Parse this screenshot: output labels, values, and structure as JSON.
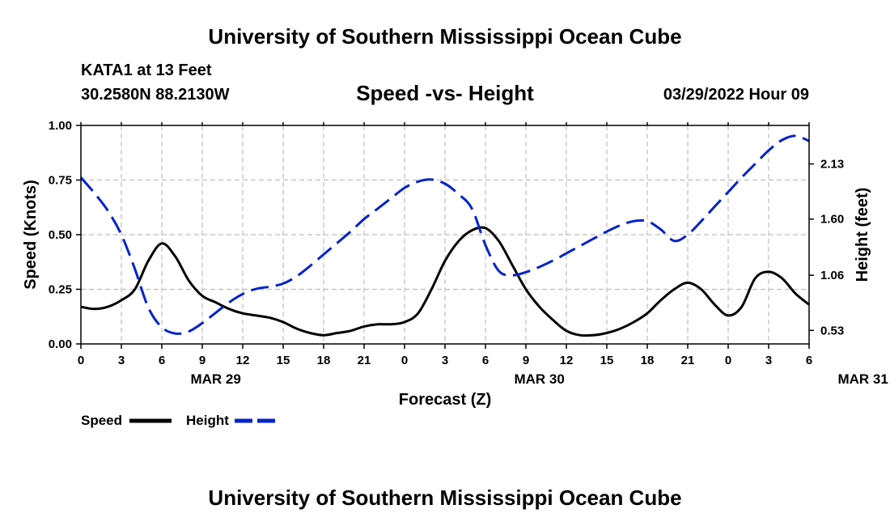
{
  "header": {
    "title": "University of Southern Mississippi Ocean Cube",
    "station": "KATA1 at 13 Feet",
    "coords": "30.2580N  88.2130W",
    "subtitle": "Speed -vs- Height",
    "datetime": "03/29/2022 Hour 09"
  },
  "footer": {
    "title": "University of Southern Mississippi Ocean Cube"
  },
  "chart_data": {
    "type": "line",
    "xlabel": "Forecast (Z)",
    "x_ticks": [
      "0",
      "3",
      "6",
      "9",
      "12",
      "15",
      "18",
      "21",
      "0",
      "3",
      "6",
      "9",
      "12",
      "15",
      "18",
      "21",
      "0",
      "3",
      "6"
    ],
    "date_labels": [
      {
        "label": "MAR 29",
        "hour": 10
      },
      {
        "label": "MAR 30",
        "hour": 34
      },
      {
        "label": "MAR 31",
        "hour": 58
      }
    ],
    "xlim": [
      0,
      54
    ],
    "ylabel_left": "Speed (Knots)",
    "ylim_left": [
      0,
      1
    ],
    "y_ticks_left": [
      "0.00",
      "0.25",
      "0.50",
      "0.75",
      "1.00"
    ],
    "ylabel_right": "Height (feet)",
    "y_ticks_right": [
      {
        "label": "0.53",
        "value": 0.53
      },
      {
        "label": "1.06",
        "value": 1.06
      },
      {
        "label": "1.60",
        "value": 1.6
      },
      {
        "label": "2.13",
        "value": 2.13
      }
    ],
    "ylim_right": [
      0.4,
      2.5
    ],
    "grid": true,
    "series": [
      {
        "name": "Speed",
        "axis": "left",
        "color": "#000000",
        "style": "solid",
        "x": [
          0,
          1,
          2,
          3,
          4,
          5,
          6,
          7,
          8,
          9,
          10,
          11,
          12,
          13,
          14,
          15,
          16,
          17,
          18,
          19,
          20,
          21,
          22,
          23,
          24,
          25,
          26,
          27,
          28,
          29,
          30,
          31,
          32,
          33,
          34,
          35,
          36,
          37,
          38,
          39,
          40,
          41,
          42,
          43,
          44,
          45,
          46,
          47,
          48,
          49,
          50,
          51,
          52,
          53,
          54
        ],
        "values": [
          0.17,
          0.16,
          0.17,
          0.2,
          0.25,
          0.38,
          0.46,
          0.4,
          0.29,
          0.22,
          0.19,
          0.16,
          0.14,
          0.13,
          0.12,
          0.1,
          0.07,
          0.05,
          0.04,
          0.05,
          0.06,
          0.08,
          0.09,
          0.09,
          0.1,
          0.14,
          0.25,
          0.38,
          0.47,
          0.52,
          0.53,
          0.47,
          0.36,
          0.25,
          0.17,
          0.11,
          0.06,
          0.04,
          0.04,
          0.05,
          0.07,
          0.1,
          0.14,
          0.2,
          0.25,
          0.28,
          0.25,
          0.18,
          0.13,
          0.17,
          0.3,
          0.33,
          0.3,
          0.23,
          0.18
        ]
      },
      {
        "name": "Height",
        "axis": "right",
        "color": "#0022cc",
        "style": "dashed",
        "x": [
          0,
          1,
          2,
          3,
          4,
          5,
          6,
          7,
          8,
          9,
          10,
          11,
          12,
          13,
          14,
          15,
          16,
          17,
          18,
          19,
          20,
          21,
          22,
          23,
          24,
          25,
          26,
          27,
          28,
          29,
          30,
          31,
          32,
          33,
          34,
          35,
          36,
          37,
          38,
          39,
          40,
          41,
          42,
          43,
          44,
          45,
          46,
          47,
          48,
          49,
          50,
          51,
          52,
          53,
          54
        ],
        "values": [
          2.0,
          1.85,
          1.68,
          1.45,
          1.12,
          0.75,
          0.56,
          0.5,
          0.52,
          0.6,
          0.7,
          0.8,
          0.88,
          0.93,
          0.95,
          0.98,
          1.05,
          1.15,
          1.26,
          1.37,
          1.48,
          1.6,
          1.7,
          1.8,
          1.9,
          1.96,
          1.98,
          1.94,
          1.84,
          1.7,
          1.35,
          1.1,
          1.06,
          1.09,
          1.14,
          1.2,
          1.27,
          1.34,
          1.41,
          1.48,
          1.54,
          1.58,
          1.58,
          1.5,
          1.39,
          1.45,
          1.58,
          1.72,
          1.86,
          2.0,
          2.13,
          2.26,
          2.36,
          2.4,
          2.35
        ]
      }
    ],
    "legend": [
      {
        "name": "Speed",
        "color": "#000000",
        "style": "solid"
      },
      {
        "name": "Height",
        "color": "#0022cc",
        "style": "dashed"
      }
    ]
  }
}
